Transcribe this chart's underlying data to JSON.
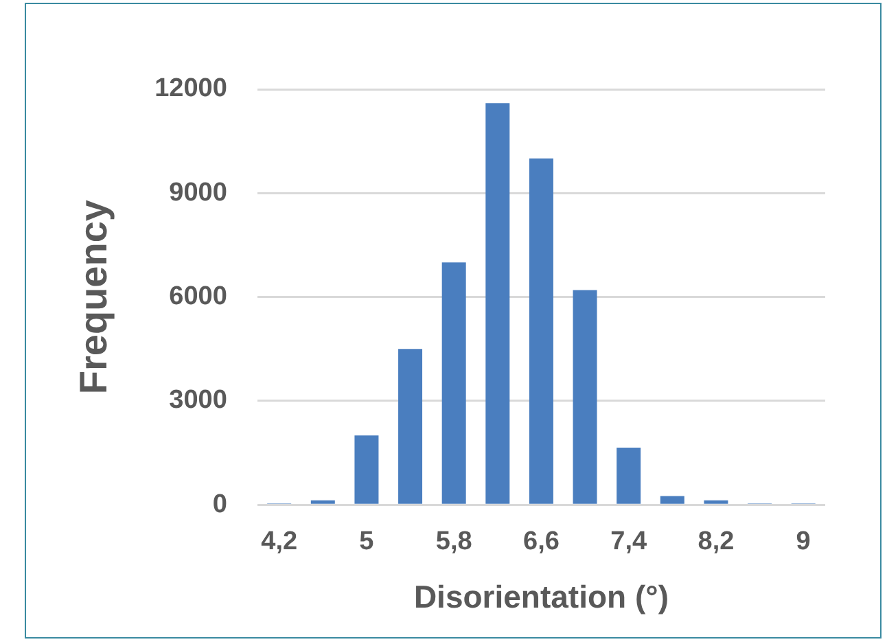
{
  "chart_data": {
    "type": "bar",
    "xlabel": "Disorientation (°)",
    "ylabel": "Frequency",
    "categories": [
      "4,2",
      null,
      "5",
      null,
      "5,8",
      null,
      "6,6",
      null,
      "7,4",
      null,
      "8,2",
      null,
      "9"
    ],
    "values": [
      40,
      130,
      2000,
      4500,
      7000,
      11600,
      10000,
      6200,
      1650,
      250,
      130,
      40,
      40
    ],
    "color": "#4a7ebf",
    "ylim": [
      0,
      12000
    ],
    "yticks": [
      0,
      3000,
      6000,
      9000,
      12000
    ],
    "grid": "y",
    "legend": false
  }
}
